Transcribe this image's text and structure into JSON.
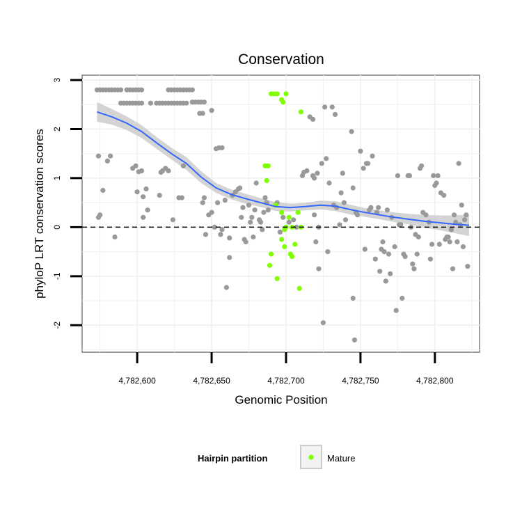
{
  "chart_data": {
    "type": "scatter",
    "title": "Conservation",
    "xlabel": "Genomic Position",
    "ylabel": "phyloP LRT conservation scores",
    "xlim": [
      4782563,
      4782830
    ],
    "ylim": [
      -2.55,
      3.1
    ],
    "x_ticks": [
      {
        "value": 4782600,
        "label": "4,782,600"
      },
      {
        "value": 4782650,
        "label": "4,782,650"
      },
      {
        "value": 4782700,
        "label": "4,782,700"
      },
      {
        "value": 4782750,
        "label": "4,782,750"
      },
      {
        "value": 4782800,
        "label": "4,782,800"
      }
    ],
    "y_ticks": [
      {
        "value": -2,
        "label": "-2"
      },
      {
        "value": -1,
        "label": "-1"
      },
      {
        "value": 0,
        "label": "0"
      },
      {
        "value": 1,
        "label": "1"
      },
      {
        "value": 2,
        "label": "2"
      },
      {
        "value": 3,
        "label": "3"
      }
    ],
    "reference_line": {
      "y": 0,
      "style": "dashed"
    },
    "grid": true,
    "legend": {
      "title": "Hairpin partition",
      "position": "bottom",
      "entries": [
        {
          "label": "Mature",
          "color": "#7fff00"
        }
      ]
    },
    "colors": {
      "other": "#999999",
      "mature": "#7fff00",
      "smooth": "#3366ff",
      "band": "#cccccc"
    },
    "series": [
      {
        "name": "Other",
        "points": [
          [
            4782573,
            2.8
          ],
          [
            4782575,
            2.8
          ],
          [
            4782577,
            2.8
          ],
          [
            4782579,
            2.8
          ],
          [
            4782581,
            2.8
          ],
          [
            4782583,
            2.8
          ],
          [
            4782585,
            2.8
          ],
          [
            4782587,
            2.8
          ],
          [
            4782589,
            2.8
          ],
          [
            4782593,
            2.8
          ],
          [
            4782595,
            2.8
          ],
          [
            4782597,
            2.8
          ],
          [
            4782599,
            2.8
          ],
          [
            4782601,
            2.8
          ],
          [
            4782603,
            2.8
          ],
          [
            4782621,
            2.8
          ],
          [
            4782623,
            2.8
          ],
          [
            4782625,
            2.8
          ],
          [
            4782627,
            2.8
          ],
          [
            4782629,
            2.8
          ],
          [
            4782631,
            2.8
          ],
          [
            4782633,
            2.8
          ],
          [
            4782635,
            2.8
          ],
          [
            4782637,
            2.8
          ],
          [
            4782589,
            2.53
          ],
          [
            4782591,
            2.53
          ],
          [
            4782593,
            2.53
          ],
          [
            4782595,
            2.53
          ],
          [
            4782597,
            2.53
          ],
          [
            4782599,
            2.53
          ],
          [
            4782601,
            2.53
          ],
          [
            4782603,
            2.53
          ],
          [
            4782609,
            2.53
          ],
          [
            4782613,
            2.53
          ],
          [
            4782615,
            2.53
          ],
          [
            4782617,
            2.53
          ],
          [
            4782619,
            2.53
          ],
          [
            4782621,
            2.53
          ],
          [
            4782623,
            2.53
          ],
          [
            4782625,
            2.53
          ],
          [
            4782627,
            2.53
          ],
          [
            4782629,
            2.53
          ],
          [
            4782631,
            2.53
          ],
          [
            4782633,
            2.53
          ],
          [
            4782637,
            2.55
          ],
          [
            4782639,
            2.55
          ],
          [
            4782641,
            2.55
          ],
          [
            4782643,
            2.55
          ],
          [
            4782645,
            2.55
          ],
          [
            4782642,
            2.32
          ],
          [
            4782644,
            2.32
          ],
          [
            4782650,
            2.38
          ],
          [
            4782653,
            1.6
          ],
          [
            4782655,
            1.62
          ],
          [
            4782657,
            1.62
          ],
          [
            4782574,
            1.45
          ],
          [
            4782574,
            0.2
          ],
          [
            4782575,
            0.25
          ],
          [
            4782577,
            0.75
          ],
          [
            4782580,
            1.35
          ],
          [
            4782582,
            1.45
          ],
          [
            4782585,
            -0.2
          ],
          [
            4782597,
            1.2
          ],
          [
            4782599,
            1.25
          ],
          [
            4782600,
            0.72
          ],
          [
            4782601,
            1.13
          ],
          [
            4782603,
            1.15
          ],
          [
            4782604,
            0.62
          ],
          [
            4782604,
            0.2
          ],
          [
            4782606,
            0.78
          ],
          [
            4782607,
            0.35
          ],
          [
            4782615,
            0.65
          ],
          [
            4782616,
            1.12
          ],
          [
            4782617,
            1.15
          ],
          [
            4782619,
            1.2
          ],
          [
            4782621,
            1.15
          ],
          [
            4782624,
            0.15
          ],
          [
            4782628,
            0.6
          ],
          [
            4782630,
            0.6
          ],
          [
            4782631,
            1.25
          ],
          [
            4782644,
            0.5
          ],
          [
            4782645,
            0.6
          ],
          [
            4782646,
            -0.15
          ],
          [
            4782648,
            0.25
          ],
          [
            4782650,
            0.3
          ],
          [
            4782652,
            0.0
          ],
          [
            4782654,
            0.5
          ],
          [
            4782656,
            -0.15
          ],
          [
            4782657,
            -0.05
          ],
          [
            4782659,
            0.55
          ],
          [
            4782660,
            -1.23
          ],
          [
            4782662,
            -0.62
          ],
          [
            4782662,
            -0.22
          ],
          [
            4782664,
            0.65
          ],
          [
            4782666,
            0.72
          ],
          [
            4782668,
            0.78
          ],
          [
            4782669,
            0.8
          ],
          [
            4782670,
            0.2
          ],
          [
            4782671,
            0.4
          ],
          [
            4782672,
            -0.25
          ],
          [
            4782673,
            -0.3
          ],
          [
            4782675,
            0.45
          ],
          [
            4782676,
            0.1
          ],
          [
            4782677,
            0.2
          ],
          [
            4782678,
            -0.2
          ],
          [
            4782679,
            0.35
          ],
          [
            4782680,
            0.9
          ],
          [
            4782682,
            0.15
          ],
          [
            4782683,
            0.1
          ],
          [
            4782684,
            -0.05
          ],
          [
            4782685,
            0.3
          ],
          [
            4782686,
            0.6
          ],
          [
            4782687,
            0.5
          ],
          [
            4782688,
            0.35
          ],
          [
            4782694,
            0.5
          ],
          [
            4782696,
            -0.1
          ],
          [
            4782698,
            0.2
          ],
          [
            4782700,
            0.0
          ],
          [
            4782702,
            0.1
          ],
          [
            4782705,
            0.15
          ],
          [
            4782707,
            0.0
          ],
          [
            4782711,
            1.05
          ],
          [
            4782712,
            1.12
          ],
          [
            4782714,
            1.15
          ],
          [
            4782716,
            2.25
          ],
          [
            4782718,
            2.2
          ],
          [
            4782718,
            1.05
          ],
          [
            4782719,
            1.0
          ],
          [
            4782719,
            0.25
          ],
          [
            4782720,
            -0.3
          ],
          [
            4782721,
            1.1
          ],
          [
            4782722,
            -0.85
          ],
          [
            4782722,
            0.0
          ],
          [
            4782724,
            1.3
          ],
          [
            4782725,
            -1.95
          ],
          [
            4782726,
            2.45
          ],
          [
            4782727,
            1.4
          ],
          [
            4782728,
            -0.5
          ],
          [
            4782729,
            0.9
          ],
          [
            4782731,
            2.45
          ],
          [
            4782732,
            0.45
          ],
          [
            4782733,
            2.3
          ],
          [
            4782734,
            0.4
          ],
          [
            4782736,
            0.05
          ],
          [
            4782737,
            0.7
          ],
          [
            4782738,
            1.1
          ],
          [
            4782739,
            0.5
          ],
          [
            4782740,
            0.15
          ],
          [
            4782744,
            1.95
          ],
          [
            4782745,
            0.8
          ],
          [
            4782745,
            -1.45
          ],
          [
            4782746,
            -2.3
          ],
          [
            4782747,
            0.3
          ],
          [
            4782748,
            0.25
          ],
          [
            4782750,
            1.55
          ],
          [
            4782752,
            1.2
          ],
          [
            4782753,
            -0.45
          ],
          [
            4782754,
            1.3
          ],
          [
            4782755,
            1.3
          ],
          [
            4782756,
            0.35
          ],
          [
            4782757,
            0.4
          ],
          [
            4782758,
            1.45
          ],
          [
            4782760,
            -0.65
          ],
          [
            4782761,
            0.3
          ],
          [
            4782762,
            0.4
          ],
          [
            4782763,
            -0.9
          ],
          [
            4782764,
            -0.45
          ],
          [
            4782765,
            -0.3
          ],
          [
            4782766,
            -0.5
          ],
          [
            4782767,
            -1.1
          ],
          [
            4782768,
            0.35
          ],
          [
            4782769,
            -0.55
          ],
          [
            4782770,
            -0.95
          ],
          [
            4782771,
            0.2
          ],
          [
            4782773,
            -0.4
          ],
          [
            4782774,
            -1.7
          ],
          [
            4782775,
            1.05
          ],
          [
            4782776,
            0.05
          ],
          [
            4782777,
            0.05
          ],
          [
            4782778,
            -1.45
          ],
          [
            4782779,
            -0.55
          ],
          [
            4782780,
            -0.6
          ],
          [
            4782782,
            1.05
          ],
          [
            4782783,
            1.05
          ],
          [
            4782784,
            0.0
          ],
          [
            4782785,
            -0.75
          ],
          [
            4782786,
            -0.85
          ],
          [
            4782787,
            -0.15
          ],
          [
            4782788,
            -0.55
          ],
          [
            4782789,
            -0.2
          ],
          [
            4782790,
            1.2
          ],
          [
            4782791,
            1.25
          ],
          [
            4782792,
            0.3
          ],
          [
            4782794,
            0.25
          ],
          [
            4782796,
            0.1
          ],
          [
            4782797,
            -0.65
          ],
          [
            4782798,
            -0.35
          ],
          [
            4782799,
            1.05
          ],
          [
            4782800,
            0.85
          ],
          [
            4782801,
            0.9
          ],
          [
            4782802,
            1.05
          ],
          [
            4782803,
            -0.35
          ],
          [
            4782804,
            0.7
          ],
          [
            4782806,
            0.65
          ],
          [
            4782807,
            -0.25
          ],
          [
            4782808,
            -0.2
          ],
          [
            4782809,
            -0.2
          ],
          [
            4782810,
            -0.3
          ],
          [
            4782811,
            -0.05
          ],
          [
            4782812,
            -0.85
          ],
          [
            4782813,
            0.25
          ],
          [
            4782814,
            0.1
          ],
          [
            4782815,
            -0.3
          ],
          [
            4782816,
            1.3
          ],
          [
            4782817,
            0.05
          ],
          [
            4782818,
            0.45
          ],
          [
            4782819,
            -0.4
          ],
          [
            4782820,
            0.15
          ],
          [
            4782821,
            0.25
          ],
          [
            4782822,
            -0.8
          ]
        ]
      },
      {
        "name": "Mature",
        "points": [
          [
            4782690,
            2.72
          ],
          [
            4782692,
            2.72
          ],
          [
            4782694,
            2.72
          ],
          [
            4782697,
            2.6
          ],
          [
            4782698,
            2.55
          ],
          [
            4782700,
            2.72
          ],
          [
            4782710,
            2.35
          ],
          [
            4782686,
            1.25
          ],
          [
            4782688,
            1.25
          ],
          [
            4782687,
            0.95
          ],
          [
            4782693,
            0.45
          ],
          [
            4782697,
            0.3
          ],
          [
            4782699,
            -0.05
          ],
          [
            4782700,
            0.0
          ],
          [
            4782702,
            0.2
          ],
          [
            4782704,
            0.0
          ],
          [
            4782708,
            0.3
          ],
          [
            4782690,
            -0.55
          ],
          [
            4782689,
            -0.78
          ],
          [
            4782694,
            -1.05
          ],
          [
            4782697,
            -0.25
          ],
          [
            4782699,
            -0.4
          ],
          [
            4782703,
            -0.55
          ],
          [
            4782704,
            -0.6
          ],
          [
            4782706,
            -0.35
          ],
          [
            4782709,
            -1.25
          ],
          [
            4782710,
            0.0
          ]
        ]
      }
    ],
    "smooth": {
      "x": [
        4782573,
        4782583,
        4782593,
        4782603,
        4782613,
        4782623,
        4782633,
        4782643,
        4782653,
        4782663,
        4782673,
        4782683,
        4782693,
        4782703,
        4782713,
        4782723,
        4782733,
        4782743,
        4782753,
        4782763,
        4782773,
        4782783,
        4782793,
        4782803,
        4782813,
        4782823
      ],
      "y": [
        2.35,
        2.25,
        2.12,
        1.95,
        1.72,
        1.5,
        1.3,
        1.02,
        0.8,
        0.67,
        0.58,
        0.5,
        0.42,
        0.4,
        0.42,
        0.45,
        0.43,
        0.36,
        0.3,
        0.25,
        0.2,
        0.16,
        0.12,
        0.09,
        0.06,
        0.04
      ],
      "lower": [
        2.15,
        2.09,
        1.98,
        1.82,
        1.6,
        1.38,
        1.17,
        0.9,
        0.7,
        0.57,
        0.48,
        0.41,
        0.33,
        0.32,
        0.34,
        0.36,
        0.33,
        0.26,
        0.21,
        0.16,
        0.1,
        0.05,
        -0.01,
        -0.06,
        -0.12,
        -0.18
      ],
      "upper": [
        2.55,
        2.41,
        2.26,
        2.08,
        1.84,
        1.62,
        1.43,
        1.14,
        0.9,
        0.77,
        0.68,
        0.59,
        0.51,
        0.48,
        0.5,
        0.54,
        0.53,
        0.46,
        0.39,
        0.34,
        0.3,
        0.27,
        0.25,
        0.24,
        0.24,
        0.26
      ]
    }
  }
}
